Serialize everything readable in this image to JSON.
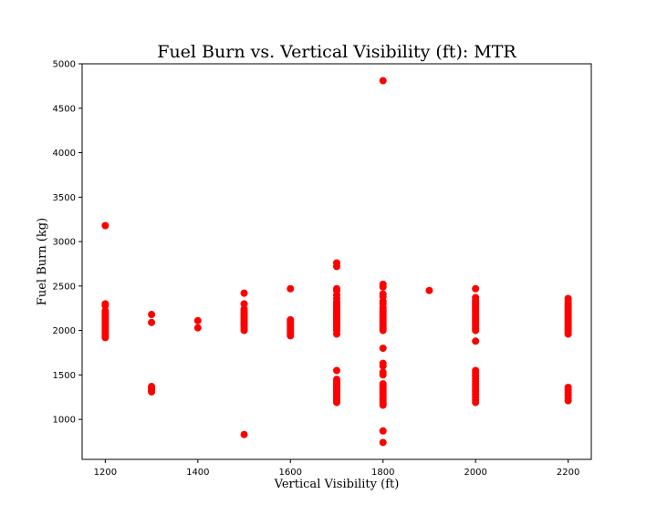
{
  "chart_data": {
    "type": "scatter",
    "title": "Fuel Burn vs. Vertical Visibility (ft): MTR",
    "xlabel": "Vertical Visibility (ft)",
    "ylabel": "Fuel Burn (kg)",
    "xlim": [
      1150,
      2250
    ],
    "ylim": [
      550,
      5000
    ],
    "xticks": [
      1200,
      1400,
      1600,
      1800,
      2000,
      2200
    ],
    "yticks": [
      1000,
      1500,
      2000,
      2500,
      3000,
      3500,
      4000,
      4500,
      5000
    ],
    "grid": false,
    "marker_color": "#ff0000",
    "series": [
      {
        "points": [
          [
            1200,
            3180
          ],
          [
            1200,
            2300
          ],
          [
            1200,
            2280
          ],
          [
            1200,
            2220
          ],
          [
            1200,
            2200
          ],
          [
            1200,
            2180
          ],
          [
            1200,
            2160
          ],
          [
            1200,
            2140
          ],
          [
            1200,
            2120
          ],
          [
            1200,
            2100
          ],
          [
            1200,
            2080
          ],
          [
            1200,
            2060
          ],
          [
            1200,
            2040
          ],
          [
            1200,
            2020
          ],
          [
            1200,
            2000
          ],
          [
            1200,
            1980
          ],
          [
            1200,
            1960
          ],
          [
            1200,
            1940
          ],
          [
            1200,
            1920
          ],
          [
            1300,
            2180
          ],
          [
            1300,
            2090
          ],
          [
            1300,
            1370
          ],
          [
            1300,
            1350
          ],
          [
            1300,
            1330
          ],
          [
            1300,
            1310
          ],
          [
            1400,
            2110
          ],
          [
            1400,
            2030
          ],
          [
            1500,
            2420
          ],
          [
            1500,
            2300
          ],
          [
            1500,
            2240
          ],
          [
            1500,
            2220
          ],
          [
            1500,
            2200
          ],
          [
            1500,
            2180
          ],
          [
            1500,
            2160
          ],
          [
            1500,
            2140
          ],
          [
            1500,
            2120
          ],
          [
            1500,
            2100
          ],
          [
            1500,
            2080
          ],
          [
            1500,
            2060
          ],
          [
            1500,
            2040
          ],
          [
            1500,
            2020
          ],
          [
            1500,
            2000
          ],
          [
            1500,
            830
          ],
          [
            1600,
            2470
          ],
          [
            1600,
            2120
          ],
          [
            1600,
            2100
          ],
          [
            1600,
            2080
          ],
          [
            1600,
            2060
          ],
          [
            1600,
            2040
          ],
          [
            1600,
            2020
          ],
          [
            1600,
            2000
          ],
          [
            1600,
            1980
          ],
          [
            1600,
            1960
          ],
          [
            1600,
            1940
          ],
          [
            1700,
            2760
          ],
          [
            1700,
            2720
          ],
          [
            1700,
            2470
          ],
          [
            1700,
            2450
          ],
          [
            1700,
            2400
          ],
          [
            1700,
            2360
          ],
          [
            1700,
            2320
          ],
          [
            1700,
            2300
          ],
          [
            1700,
            2280
          ],
          [
            1700,
            2260
          ],
          [
            1700,
            2240
          ],
          [
            1700,
            2220
          ],
          [
            1700,
            2200
          ],
          [
            1700,
            2180
          ],
          [
            1700,
            2160
          ],
          [
            1700,
            2140
          ],
          [
            1700,
            2120
          ],
          [
            1700,
            2100
          ],
          [
            1700,
            2080
          ],
          [
            1700,
            2060
          ],
          [
            1700,
            2040
          ],
          [
            1700,
            2020
          ],
          [
            1700,
            2000
          ],
          [
            1700,
            1960
          ],
          [
            1700,
            1550
          ],
          [
            1700,
            1450
          ],
          [
            1700,
            1430
          ],
          [
            1700,
            1410
          ],
          [
            1700,
            1390
          ],
          [
            1700,
            1370
          ],
          [
            1700,
            1350
          ],
          [
            1700,
            1330
          ],
          [
            1700,
            1310
          ],
          [
            1700,
            1290
          ],
          [
            1700,
            1270
          ],
          [
            1700,
            1250
          ],
          [
            1700,
            1230
          ],
          [
            1700,
            1210
          ],
          [
            1700,
            1190
          ],
          [
            1800,
            4810
          ],
          [
            1800,
            2520
          ],
          [
            1800,
            2490
          ],
          [
            1800,
            2410
          ],
          [
            1800,
            2380
          ],
          [
            1800,
            2330
          ],
          [
            1800,
            2300
          ],
          [
            1800,
            2260
          ],
          [
            1800,
            2240
          ],
          [
            1800,
            2220
          ],
          [
            1800,
            2200
          ],
          [
            1800,
            2180
          ],
          [
            1800,
            2160
          ],
          [
            1800,
            2140
          ],
          [
            1800,
            2120
          ],
          [
            1800,
            2100
          ],
          [
            1800,
            2080
          ],
          [
            1800,
            2060
          ],
          [
            1800,
            2040
          ],
          [
            1800,
            2020
          ],
          [
            1800,
            2000
          ],
          [
            1800,
            1800
          ],
          [
            1800,
            1630
          ],
          [
            1800,
            1600
          ],
          [
            1800,
            1530
          ],
          [
            1800,
            1500
          ],
          [
            1800,
            1400
          ],
          [
            1800,
            1380
          ],
          [
            1800,
            1360
          ],
          [
            1800,
            1340
          ],
          [
            1800,
            1320
          ],
          [
            1800,
            1300
          ],
          [
            1800,
            1280
          ],
          [
            1800,
            1260
          ],
          [
            1800,
            1240
          ],
          [
            1800,
            1220
          ],
          [
            1800,
            1200
          ],
          [
            1800,
            1180
          ],
          [
            1800,
            1160
          ],
          [
            1800,
            870
          ],
          [
            1800,
            740
          ],
          [
            1900,
            2450
          ],
          [
            2000,
            2470
          ],
          [
            2000,
            2370
          ],
          [
            2000,
            2340
          ],
          [
            2000,
            2320
          ],
          [
            2000,
            2300
          ],
          [
            2000,
            2280
          ],
          [
            2000,
            2260
          ],
          [
            2000,
            2240
          ],
          [
            2000,
            2220
          ],
          [
            2000,
            2200
          ],
          [
            2000,
            2180
          ],
          [
            2000,
            2160
          ],
          [
            2000,
            2140
          ],
          [
            2000,
            2120
          ],
          [
            2000,
            2100
          ],
          [
            2000,
            2080
          ],
          [
            2000,
            2060
          ],
          [
            2000,
            2040
          ],
          [
            2000,
            2020
          ],
          [
            2000,
            2000
          ],
          [
            2000,
            1880
          ],
          [
            2000,
            1550
          ],
          [
            2000,
            1520
          ],
          [
            2000,
            1490
          ],
          [
            2000,
            1460
          ],
          [
            2000,
            1430
          ],
          [
            2000,
            1400
          ],
          [
            2000,
            1370
          ],
          [
            2000,
            1340
          ],
          [
            2000,
            1310
          ],
          [
            2000,
            1280
          ],
          [
            2000,
            1250
          ],
          [
            2000,
            1220
          ],
          [
            2000,
            1190
          ],
          [
            2200,
            2360
          ],
          [
            2200,
            2330
          ],
          [
            2200,
            2300
          ],
          [
            2200,
            2280
          ],
          [
            2200,
            2260
          ],
          [
            2200,
            2240
          ],
          [
            2200,
            2220
          ],
          [
            2200,
            2200
          ],
          [
            2200,
            2180
          ],
          [
            2200,
            2160
          ],
          [
            2200,
            2140
          ],
          [
            2200,
            2120
          ],
          [
            2200,
            2100
          ],
          [
            2200,
            2080
          ],
          [
            2200,
            2060
          ],
          [
            2200,
            2040
          ],
          [
            2200,
            2020
          ],
          [
            2200,
            2000
          ],
          [
            2200,
            1980
          ],
          [
            2200,
            1960
          ],
          [
            2200,
            1360
          ],
          [
            2200,
            1330
          ],
          [
            2200,
            1300
          ],
          [
            2200,
            1270
          ],
          [
            2200,
            1240
          ],
          [
            2200,
            1210
          ]
        ]
      }
    ]
  }
}
